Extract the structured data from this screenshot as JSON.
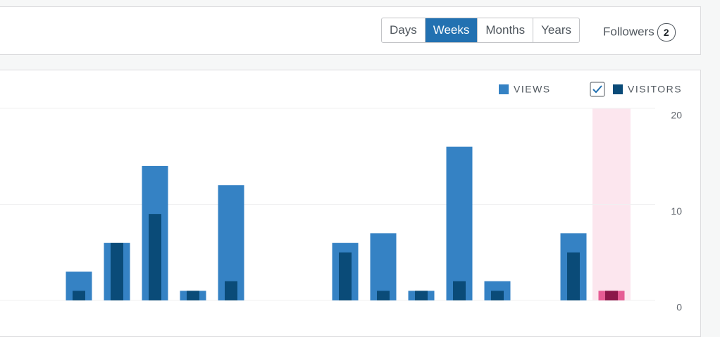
{
  "tabs": [
    "Days",
    "Weeks",
    "Months",
    "Years"
  ],
  "selected_tab": "Weeks",
  "followers": {
    "label": "Followers",
    "count": 2
  },
  "chart_data": {
    "type": "bar",
    "categories": [
      null,
      null,
      null,
      null,
      null,
      null,
      null,
      null,
      null,
      null,
      null,
      null,
      null,
      null,
      null,
      null
    ],
    "series": [
      {
        "name": "VIEWS",
        "color": "#3582c4",
        "highlight_color": "#e65c94",
        "values": [
          0,
          3,
          6,
          14,
          1,
          12,
          0,
          0,
          6,
          7,
          1,
          16,
          2,
          0,
          7,
          1
        ]
      },
      {
        "name": "VISITORS",
        "color": "#0a4b78",
        "highlight_color": "#8c1749",
        "values": [
          0,
          1,
          6,
          9,
          1,
          2,
          0,
          0,
          5,
          1,
          1,
          2,
          1,
          0,
          5,
          1
        ]
      }
    ],
    "highlight_band_color": "#fce6ee",
    "ylim": [
      0,
      20
    ],
    "yticks": [
      0,
      10,
      20
    ],
    "grid": true
  }
}
